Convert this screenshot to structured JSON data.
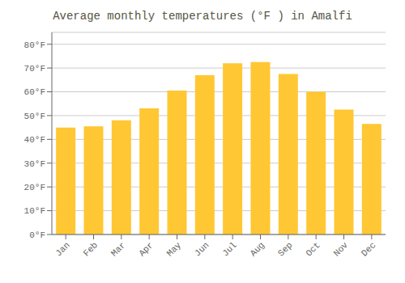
{
  "chart_data": {
    "type": "bar",
    "title": "Average monthly temperatures (°F ) in Amalfi",
    "categories": [
      "Jan",
      "Feb",
      "Mar",
      "Apr",
      "May",
      "Jun",
      "Jul",
      "Aug",
      "Sep",
      "Oct",
      "Nov",
      "Dec"
    ],
    "values": [
      45,
      45.5,
      48,
      53,
      60.5,
      67,
      72,
      72.5,
      67.5,
      60,
      52.5,
      46.5
    ],
    "color": "#FFC733",
    "ylim": [
      0,
      85
    ],
    "yticks": [
      {
        "value": 0,
        "label": "0°F"
      },
      {
        "value": 10,
        "label": "10°F"
      },
      {
        "value": 20,
        "label": "20°F"
      },
      {
        "value": 30,
        "label": "30°F"
      },
      {
        "value": 40,
        "label": "40°F"
      },
      {
        "value": 50,
        "label": "50°F"
      },
      {
        "value": 60,
        "label": "60°F"
      },
      {
        "value": 70,
        "label": "70°F"
      },
      {
        "value": 80,
        "label": "80°F"
      }
    ],
    "grid": true
  }
}
